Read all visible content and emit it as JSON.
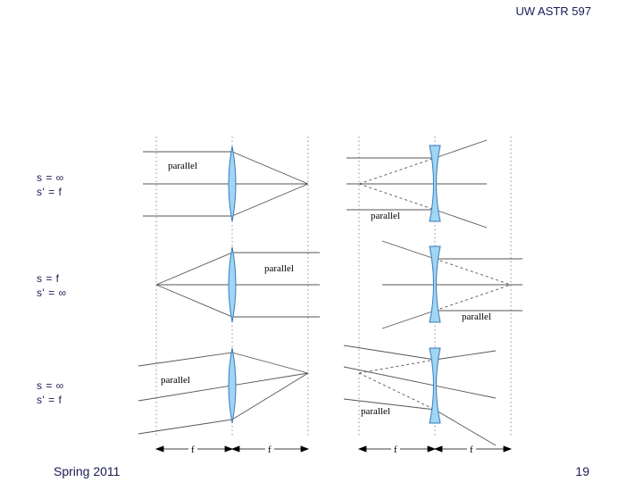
{
  "header": {
    "course": "UW ASTR 597"
  },
  "footer": {
    "term": "Spring 2011",
    "page": "19"
  },
  "cases": [
    {
      "line1": "s = ∞",
      "line2": "s' = f"
    },
    {
      "line1": "s = f",
      "line2": "s' = ∞"
    },
    {
      "line1": "s = ∞",
      "line2": "s' = f"
    }
  ],
  "labels": {
    "parallel": "parallel",
    "focal": "f"
  },
  "colors": {
    "lens_fill": "#9fd6f5",
    "lens_stroke": "#3a79b8",
    "ray": "#555555",
    "guide": "#777777",
    "text": "#1a1a55"
  }
}
